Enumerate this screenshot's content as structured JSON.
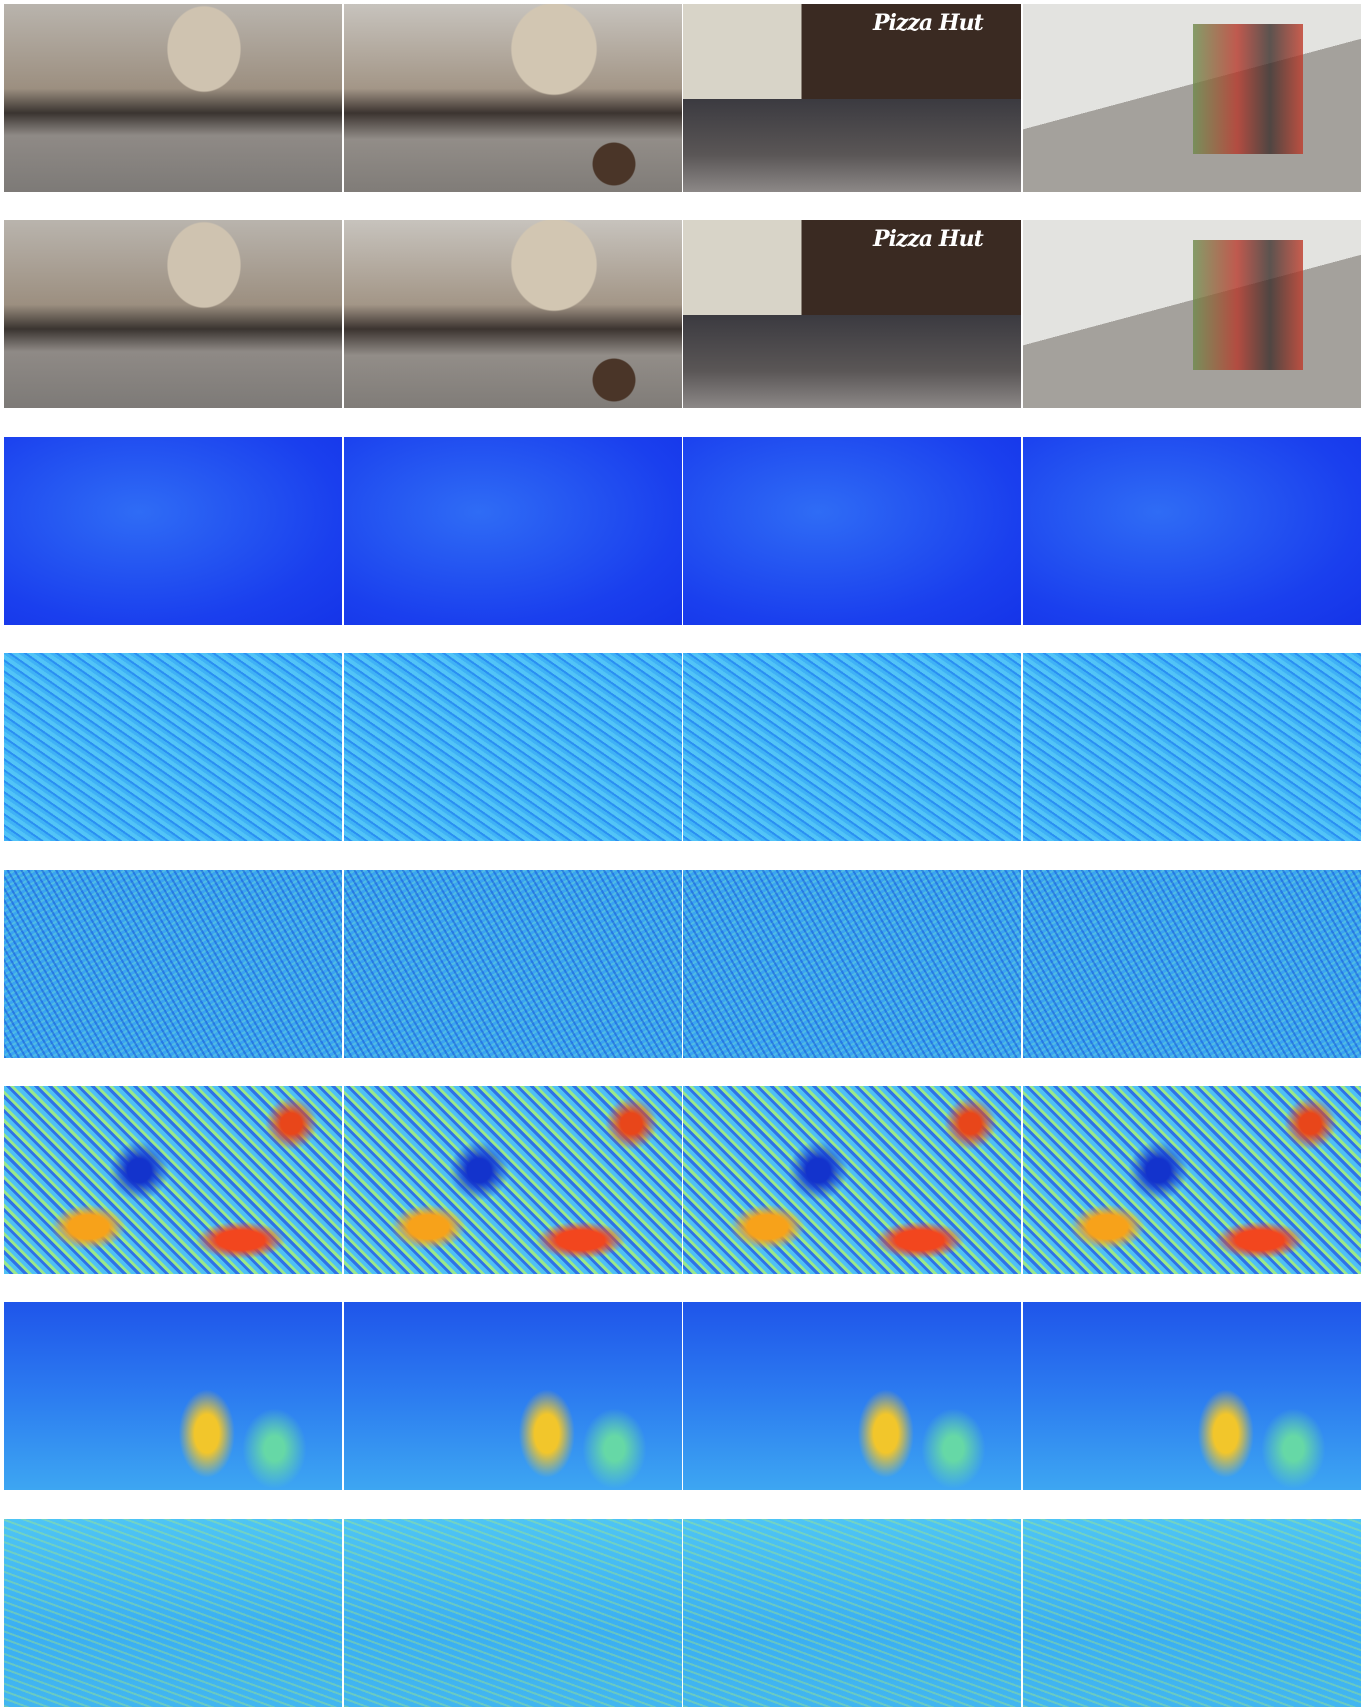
{
  "sign_text": "Pizza Hut"
}
